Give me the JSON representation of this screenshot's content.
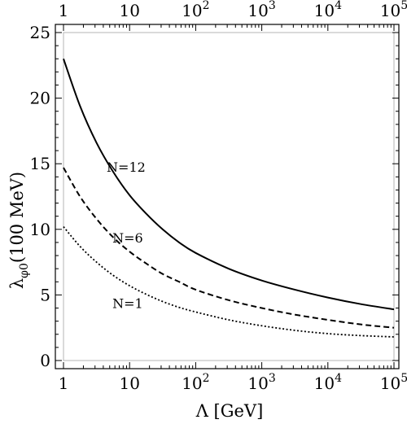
{
  "chart_data": {
    "type": "line",
    "title": "",
    "xlabel": "Λ [GeV]",
    "ylabel": "λ",
    "ylabel_sub": "φ0",
    "ylabel_rest": "(100 MeV)",
    "x_scale": "log",
    "xlim": [
      1,
      100000
    ],
    "ylim": [
      0,
      25
    ],
    "grid": false,
    "x_ticks": [
      {
        "value": 1,
        "base": "1",
        "exp": ""
      },
      {
        "value": 10,
        "base": "10",
        "exp": ""
      },
      {
        "value": 100,
        "base": "10",
        "exp": "2"
      },
      {
        "value": 1000,
        "base": "10",
        "exp": "3"
      },
      {
        "value": 10000,
        "base": "10",
        "exp": "4"
      },
      {
        "value": 100000,
        "base": "10",
        "exp": "5"
      }
    ],
    "y_ticks": [
      0,
      5,
      10,
      15,
      20,
      25
    ],
    "series": [
      {
        "name": "N=12",
        "dash": "solid",
        "x": [
          1,
          1.78,
          3.16,
          5.62,
          10,
          17.8,
          31.6,
          56.2,
          100,
          316,
          1000,
          3162,
          10000,
          31623,
          100000
        ],
        "y": [
          23.0,
          19.4,
          16.6,
          14.4,
          12.6,
          11.2,
          10.0,
          9.0,
          8.2,
          7.0,
          6.1,
          5.4,
          4.8,
          4.3,
          3.9
        ]
      },
      {
        "name": "N=6",
        "dash": "dashed",
        "x": [
          1,
          1.78,
          3.16,
          5.62,
          10,
          17.8,
          31.6,
          56.2,
          100,
          316,
          1000,
          3162,
          10000,
          31623,
          100000
        ],
        "y": [
          14.7,
          12.5,
          10.8,
          9.4,
          8.3,
          7.4,
          6.6,
          6.0,
          5.4,
          4.6,
          4.0,
          3.5,
          3.1,
          2.75,
          2.5
        ]
      },
      {
        "name": "N=1",
        "dash": "dotted",
        "x": [
          1,
          1.78,
          3.16,
          5.62,
          10,
          17.8,
          31.6,
          56.2,
          100,
          316,
          1000,
          3162,
          10000,
          31623,
          100000
        ],
        "y": [
          10.2,
          8.7,
          7.5,
          6.5,
          5.7,
          5.05,
          4.5,
          4.05,
          3.7,
          3.1,
          2.65,
          2.3,
          2.05,
          1.9,
          1.8
        ]
      }
    ],
    "annotations": [
      {
        "text": "N=12",
        "x": 4.5,
        "y": 14.4
      },
      {
        "text": "N=6",
        "x": 5.5,
        "y": 9.0
      },
      {
        "text": "N=1",
        "x": 5.5,
        "y": 4.0
      }
    ]
  }
}
